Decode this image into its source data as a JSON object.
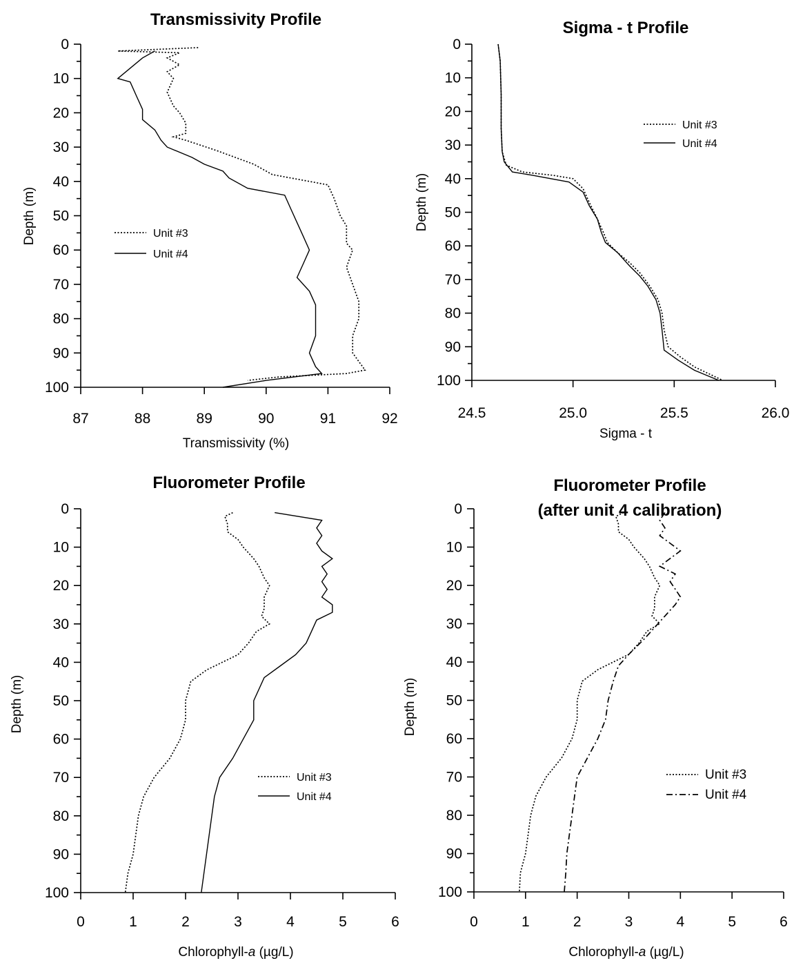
{
  "chart_data": [
    {
      "type": "line",
      "title": "Transmissivity Profile",
      "xlabel": "Transmissivity (%)",
      "ylabel": "Depth (m)",
      "xlim": [
        87,
        92
      ],
      "ylim": [
        0,
        100
      ],
      "y_inverted": true,
      "xticks": [
        "87",
        "88",
        "89",
        "90",
        "91",
        "92"
      ],
      "yticks": [
        "0",
        "10",
        "20",
        "30",
        "40",
        "50",
        "60",
        "70",
        "80",
        "90",
        "100"
      ],
      "legend": "center-left",
      "series": [
        {
          "name": "Unit #3",
          "style": "dotted",
          "points": [
            [
              88.9,
              1
            ],
            [
              87.6,
              2
            ],
            [
              88.6,
              2.5
            ],
            [
              88.4,
              4
            ],
            [
              88.6,
              6
            ],
            [
              88.4,
              8
            ],
            [
              88.5,
              10
            ],
            [
              88.4,
              14
            ],
            [
              88.5,
              18
            ],
            [
              88.6,
              20
            ],
            [
              88.7,
              23
            ],
            [
              88.7,
              26
            ],
            [
              88.5,
              27
            ],
            [
              88.7,
              28
            ],
            [
              89.2,
              31
            ],
            [
              89.5,
              33
            ],
            [
              89.8,
              35
            ],
            [
              90.1,
              38
            ],
            [
              90.7,
              40
            ],
            [
              91.0,
              41
            ],
            [
              91.1,
              45
            ],
            [
              91.2,
              50
            ],
            [
              91.3,
              53
            ],
            [
              91.3,
              58
            ],
            [
              91.4,
              60
            ],
            [
              91.3,
              65
            ],
            [
              91.4,
              70
            ],
            [
              91.5,
              75
            ],
            [
              91.5,
              80
            ],
            [
              91.4,
              85
            ],
            [
              91.4,
              90
            ],
            [
              91.6,
              95
            ],
            [
              91.3,
              96
            ],
            [
              90.2,
              97
            ],
            [
              89.7,
              98
            ]
          ]
        },
        {
          "name": "Unit #4",
          "style": "solid",
          "points": [
            [
              88.2,
              2
            ],
            [
              88.0,
              4
            ],
            [
              87.8,
              7
            ],
            [
              87.6,
              10
            ],
            [
              87.8,
              11
            ],
            [
              87.9,
              15
            ],
            [
              88.0,
              19
            ],
            [
              88.0,
              22
            ],
            [
              88.2,
              25
            ],
            [
              88.3,
              28
            ],
            [
              88.4,
              30
            ],
            [
              88.8,
              33
            ],
            [
              89.0,
              35
            ],
            [
              89.3,
              37
            ],
            [
              89.4,
              39
            ],
            [
              89.7,
              42
            ],
            [
              90.3,
              44
            ],
            [
              90.4,
              48
            ],
            [
              90.5,
              52
            ],
            [
              90.6,
              56
            ],
            [
              90.7,
              60
            ],
            [
              90.6,
              64
            ],
            [
              90.5,
              68
            ],
            [
              90.7,
              72
            ],
            [
              90.8,
              76
            ],
            [
              90.8,
              80
            ],
            [
              90.8,
              85
            ],
            [
              90.7,
              90
            ],
            [
              90.8,
              94
            ],
            [
              90.9,
              96
            ],
            [
              90.0,
              98
            ],
            [
              89.3,
              100
            ]
          ]
        }
      ]
    },
    {
      "type": "line",
      "title": "Sigma - t Profile",
      "xlabel": "Sigma - t",
      "ylabel": "Depth (m)",
      "xlim": [
        24.5,
        26.0
      ],
      "ylim": [
        0,
        100
      ],
      "y_inverted": true,
      "xticks": [
        "24.5",
        "25.0",
        "25.5",
        "26.0"
      ],
      "yticks": [
        "0",
        "10",
        "20",
        "30",
        "40",
        "50",
        "60",
        "70",
        "80",
        "90",
        "100"
      ],
      "legend": "top-right",
      "series": [
        {
          "name": "Unit #3",
          "style": "dotted",
          "points": [
            [
              24.63,
              0
            ],
            [
              24.64,
              5
            ],
            [
              24.645,
              15
            ],
            [
              24.645,
              25
            ],
            [
              24.65,
              32
            ],
            [
              24.67,
              36
            ],
            [
              24.75,
              38
            ],
            [
              24.9,
              39
            ],
            [
              25.0,
              40
            ],
            [
              25.05,
              43
            ],
            [
              25.08,
              47
            ],
            [
              25.12,
              52
            ],
            [
              25.15,
              56
            ],
            [
              25.17,
              59
            ],
            [
              25.22,
              62
            ],
            [
              25.28,
              65
            ],
            [
              25.33,
              68
            ],
            [
              25.38,
              72
            ],
            [
              25.42,
              76
            ],
            [
              25.44,
              80
            ],
            [
              25.45,
              85
            ],
            [
              25.47,
              90
            ],
            [
              25.53,
              93
            ],
            [
              25.6,
              96
            ],
            [
              25.74,
              100
            ]
          ]
        },
        {
          "name": "Unit #4",
          "style": "solid",
          "points": [
            [
              24.63,
              0
            ],
            [
              24.64,
              5
            ],
            [
              24.645,
              15
            ],
            [
              24.645,
              25
            ],
            [
              24.65,
              32
            ],
            [
              24.66,
              35
            ],
            [
              24.7,
              38
            ],
            [
              24.8,
              39
            ],
            [
              24.98,
              41
            ],
            [
              25.05,
              44
            ],
            [
              25.08,
              48
            ],
            [
              25.12,
              52
            ],
            [
              25.14,
              56
            ],
            [
              25.16,
              59
            ],
            [
              25.22,
              62
            ],
            [
              25.28,
              66
            ],
            [
              25.33,
              69
            ],
            [
              25.37,
              72
            ],
            [
              25.41,
              76
            ],
            [
              25.43,
              80
            ],
            [
              25.44,
              85
            ],
            [
              25.45,
              91
            ],
            [
              25.52,
              94
            ],
            [
              25.6,
              97
            ],
            [
              25.72,
              100
            ]
          ]
        }
      ]
    },
    {
      "type": "line",
      "title": "Fluorometer Profile",
      "xlabel_main": "Chlorophyll-",
      "xlabel_italic": "a",
      "xlabel_unit": " (µg/L)",
      "ylabel": "Depth (m)",
      "xlim": [
        0,
        6
      ],
      "ylim": [
        0,
        100
      ],
      "y_inverted": true,
      "xticks": [
        "0",
        "1",
        "2",
        "3",
        "4",
        "5",
        "6"
      ],
      "yticks": [
        "0",
        "10",
        "20",
        "30",
        "40",
        "50",
        "60",
        "70",
        "80",
        "90",
        "100"
      ],
      "legend": "lower-right",
      "series": [
        {
          "name": "Unit #3",
          "style": "dotted",
          "points": [
            [
              2.9,
              1
            ],
            [
              2.75,
              2
            ],
            [
              2.8,
              4
            ],
            [
              2.8,
              6
            ],
            [
              3.0,
              8
            ],
            [
              3.1,
              10
            ],
            [
              3.3,
              13
            ],
            [
              3.4,
              15
            ],
            [
              3.5,
              18
            ],
            [
              3.6,
              20
            ],
            [
              3.5,
              23
            ],
            [
              3.5,
              26
            ],
            [
              3.45,
              28
            ],
            [
              3.6,
              30
            ],
            [
              3.35,
              32
            ],
            [
              3.2,
              35
            ],
            [
              3.0,
              38
            ],
            [
              2.7,
              40
            ],
            [
              2.4,
              42
            ],
            [
              2.1,
              45
            ],
            [
              2.0,
              50
            ],
            [
              2.0,
              55
            ],
            [
              1.9,
              60
            ],
            [
              1.7,
              65
            ],
            [
              1.4,
              70
            ],
            [
              1.2,
              75
            ],
            [
              1.1,
              80
            ],
            [
              1.05,
              85
            ],
            [
              1.0,
              90
            ],
            [
              0.9,
              95
            ],
            [
              0.85,
              100
            ]
          ]
        },
        {
          "name": "Unit #4",
          "style": "solid",
          "points": [
            [
              3.7,
              1
            ],
            [
              4.6,
              3
            ],
            [
              4.5,
              5
            ],
            [
              4.6,
              7
            ],
            [
              4.5,
              9
            ],
            [
              4.6,
              11
            ],
            [
              4.8,
              13
            ],
            [
              4.6,
              15
            ],
            [
              4.7,
              17
            ],
            [
              4.6,
              19
            ],
            [
              4.7,
              21
            ],
            [
              4.6,
              23
            ],
            [
              4.8,
              25
            ],
            [
              4.8,
              27
            ],
            [
              4.5,
              29
            ],
            [
              4.4,
              32
            ],
            [
              4.3,
              35
            ],
            [
              4.1,
              38
            ],
            [
              3.8,
              41
            ],
            [
              3.5,
              44
            ],
            [
              3.3,
              50
            ],
            [
              3.3,
              55
            ],
            [
              3.1,
              60
            ],
            [
              2.9,
              65
            ],
            [
              2.65,
              70
            ],
            [
              2.55,
              75
            ],
            [
              2.5,
              80
            ],
            [
              2.45,
              85
            ],
            [
              2.4,
              90
            ],
            [
              2.35,
              95
            ],
            [
              2.3,
              100
            ]
          ]
        }
      ]
    },
    {
      "type": "line",
      "title_line1": "Fluorometer Profile",
      "title_line2": "(after unit 4 calibration)",
      "xlabel_main": "Chlorophyll-",
      "xlabel_italic": "a",
      "xlabel_unit": " (µg/L)",
      "ylabel": "Depth (m)",
      "xlim": [
        0,
        6
      ],
      "ylim": [
        0,
        100
      ],
      "y_inverted": true,
      "xticks": [
        "0",
        "1",
        "2",
        "3",
        "4",
        "5",
        "6"
      ],
      "yticks": [
        "0",
        "10",
        "20",
        "30",
        "40",
        "50",
        "60",
        "70",
        "80",
        "90",
        "100"
      ],
      "legend": "lower-right",
      "series": [
        {
          "name": "Unit #3",
          "style": "dotted",
          "points": [
            [
              2.9,
              1
            ],
            [
              2.75,
              2
            ],
            [
              2.8,
              4
            ],
            [
              2.8,
              6
            ],
            [
              3.0,
              8
            ],
            [
              3.1,
              10
            ],
            [
              3.3,
              13
            ],
            [
              3.4,
              15
            ],
            [
              3.5,
              18
            ],
            [
              3.6,
              20
            ],
            [
              3.5,
              23
            ],
            [
              3.5,
              26
            ],
            [
              3.45,
              28
            ],
            [
              3.6,
              30
            ],
            [
              3.35,
              32
            ],
            [
              3.2,
              35
            ],
            [
              3.0,
              38
            ],
            [
              2.7,
              40
            ],
            [
              2.4,
              42
            ],
            [
              2.1,
              45
            ],
            [
              2.0,
              50
            ],
            [
              2.0,
              55
            ],
            [
              1.9,
              60
            ],
            [
              1.7,
              65
            ],
            [
              1.4,
              70
            ],
            [
              1.2,
              75
            ],
            [
              1.1,
              80
            ],
            [
              1.05,
              85
            ],
            [
              1.0,
              90
            ],
            [
              0.9,
              95
            ],
            [
              0.88,
              100
            ]
          ]
        },
        {
          "name": "Unit #4",
          "style": "dash-dot",
          "points": [
            [
              3.7,
              1
            ],
            [
              3.6,
              3
            ],
            [
              3.7,
              5
            ],
            [
              3.6,
              7
            ],
            [
              3.8,
              9
            ],
            [
              4.0,
              11
            ],
            [
              3.8,
              13
            ],
            [
              3.6,
              15
            ],
            [
              3.9,
              17
            ],
            [
              3.8,
              19
            ],
            [
              3.9,
              21
            ],
            [
              4.0,
              23
            ],
            [
              3.9,
              25
            ],
            [
              3.7,
              28
            ],
            [
              3.5,
              31
            ],
            [
              3.3,
              34
            ],
            [
              3.0,
              38
            ],
            [
              2.8,
              41
            ],
            [
              2.7,
              45
            ],
            [
              2.6,
              50
            ],
            [
              2.55,
              55
            ],
            [
              2.4,
              60
            ],
            [
              2.2,
              65
            ],
            [
              2.0,
              70
            ],
            [
              1.95,
              75
            ],
            [
              1.9,
              80
            ],
            [
              1.85,
              85
            ],
            [
              1.8,
              90
            ],
            [
              1.78,
              95
            ],
            [
              1.75,
              100
            ]
          ]
        }
      ]
    }
  ]
}
